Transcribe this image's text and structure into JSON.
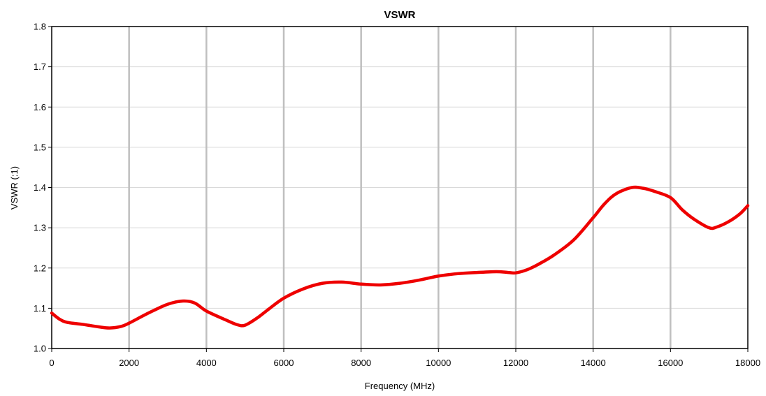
{
  "chart_data": {
    "type": "line",
    "title": "VSWR",
    "xlabel": "Frequency (MHz)",
    "ylabel": "VSWR (:1)",
    "xlim": [
      0,
      18000
    ],
    "ylim": [
      1.0,
      1.8
    ],
    "x_ticks": [
      0,
      2000,
      4000,
      6000,
      8000,
      10000,
      12000,
      14000,
      16000,
      18000
    ],
    "y_ticks": [
      "1.0",
      "1.1",
      "1.2",
      "1.3",
      "1.4",
      "1.5",
      "1.6",
      "1.7",
      "1.8"
    ],
    "grid": {
      "horizontal": true,
      "vertical": true
    },
    "legend": "none",
    "colors": {
      "series": "#ee0000",
      "vertical_grid": "#bfbfbf",
      "horizontal_grid": "#d9d9d9",
      "axis": "#000000"
    },
    "series": [
      {
        "x": [
          0,
          200,
          400,
          800,
          1200,
          1500,
          1800,
          2000,
          2500,
          3000,
          3400,
          3700,
          4000,
          4500,
          4800,
          5000,
          5300,
          5600,
          6000,
          6500,
          7000,
          7500,
          8000,
          8500,
          9000,
          9500,
          10000,
          10500,
          11000,
          11500,
          11800,
          12000,
          12300,
          12600,
          13000,
          13500,
          14000,
          14300,
          14600,
          15000,
          15300,
          15600,
          16000,
          16300,
          16600,
          17000,
          17200,
          17500,
          17800,
          18000
        ],
        "values": [
          1.088,
          1.073,
          1.065,
          1.06,
          1.054,
          1.051,
          1.055,
          1.063,
          1.088,
          1.11,
          1.118,
          1.113,
          1.093,
          1.071,
          1.059,
          1.058,
          1.075,
          1.097,
          1.125,
          1.148,
          1.162,
          1.165,
          1.16,
          1.158,
          1.162,
          1.17,
          1.18,
          1.186,
          1.189,
          1.191,
          1.189,
          1.188,
          1.196,
          1.21,
          1.233,
          1.27,
          1.325,
          1.36,
          1.385,
          1.4,
          1.398,
          1.39,
          1.375,
          1.345,
          1.322,
          1.3,
          1.302,
          1.315,
          1.335,
          1.355
        ]
      }
    ]
  }
}
